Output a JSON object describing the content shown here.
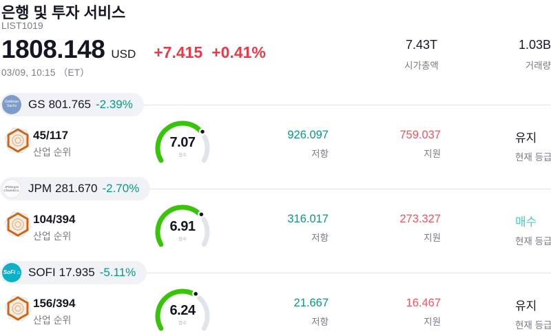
{
  "colors": {
    "up_red": "#f23645",
    "down_teal": "#089981",
    "support_red": "#f7525f",
    "buy_teal": "#45cfc4",
    "text_dark": "#131722",
    "muted_gray": "#787b86",
    "gauge_green": "#38c40a",
    "gauge_track": "#e1e4ea",
    "pill_bg": "#f0f2f6"
  },
  "header": {
    "title": "은행 및 투자 서비스",
    "list_id": "LIST1019",
    "price": "1808.148",
    "currency": "USD",
    "change_abs": "+7.415",
    "change_pct": "+0.41%",
    "datetime": "03/09, 10:15 （ET）",
    "market_cap": {
      "value": "7.43T",
      "label": "시가총액"
    },
    "volume": {
      "value": "1.03B",
      "label": "거래량"
    }
  },
  "rows": [
    {
      "ticker": "GS",
      "price": "801.765",
      "change": "-2.39%",
      "logo": {
        "line1": "Goldman",
        "line2": "Sachs",
        "bg": "#7e9cc9"
      },
      "rank": "45/117",
      "rank_label": "산업 순위",
      "score": "7.07",
      "score_value": 7.07,
      "score_label": "점수",
      "resistance": "926.097",
      "resistance_label": "저항",
      "support": "759.037",
      "support_label": "지원",
      "rating": "유지",
      "rating_label": "현재 등급",
      "rating_color": "#131722"
    },
    {
      "ticker": "JPM",
      "price": "281.670",
      "change": "-2.70%",
      "logo": {
        "line1": "JPMorgan",
        "line2": "Chase&Co.",
        "bg": "#fbfbfc"
      },
      "rank": "104/394",
      "rank_label": "산업 순위",
      "score": "6.91",
      "score_value": 6.91,
      "score_label": "점수",
      "resistance": "316.017",
      "resistance_label": "저항",
      "support": "273.327",
      "support_label": "지원",
      "rating": "매수",
      "rating_label": "현재 등급",
      "rating_color": "#45cfc4"
    },
    {
      "ticker": "SOFI",
      "price": "17.935",
      "change": "-5.11%",
      "logo": {
        "line1": "SoFi ⌂",
        "line2": "",
        "bg": "#0cb0c9"
      },
      "rank": "156/394",
      "rank_label": "산업 순위",
      "score": "6.24",
      "score_value": 6.24,
      "score_label": "점수",
      "resistance": "21.667",
      "resistance_label": "저항",
      "support": "16.467",
      "support_label": "지원",
      "rating": "유지",
      "rating_label": "현재 등급",
      "rating_color": "#131722"
    }
  ]
}
